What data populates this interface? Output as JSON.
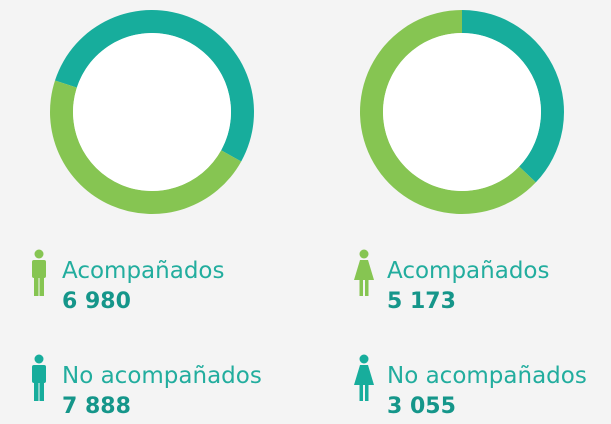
{
  "chart_data": [
    {
      "type": "pie",
      "categories": [
        "Acompañados",
        "No acompañados"
      ],
      "values": [
        6980,
        7888
      ],
      "value_labels": [
        "6 980",
        "7 888"
      ],
      "colors": [
        "#86c552",
        "#17ad9c"
      ]
    },
    {
      "type": "pie",
      "categories": [
        "Acompañados",
        "No acompañados"
      ],
      "values": [
        5173,
        3055
      ],
      "value_labels": [
        "5 173",
        "3 055"
      ],
      "colors": [
        "#86c552",
        "#17ad9c"
      ]
    }
  ]
}
